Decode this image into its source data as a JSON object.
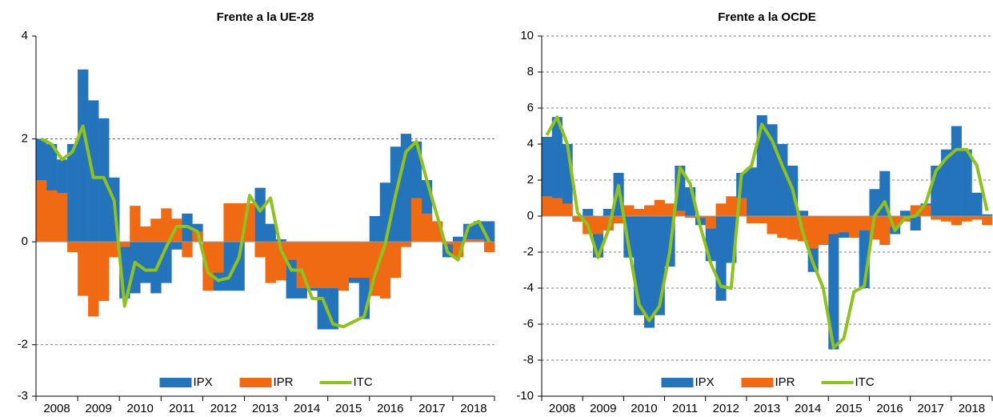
{
  "chart_data": [
    {
      "type": "bar",
      "title": "Frente a la UE-28",
      "categories": [
        "2008",
        null,
        null,
        null,
        "2009",
        null,
        null,
        null,
        "2010",
        null,
        null,
        null,
        "2011",
        null,
        null,
        null,
        "2012",
        null,
        null,
        null,
        "2013",
        null,
        null,
        null,
        "2014",
        null,
        null,
        null,
        "2015",
        null,
        null,
        null,
        "2016",
        null,
        null,
        null,
        "2017",
        null,
        null,
        null,
        "2018",
        null,
        null,
        null
      ],
      "ylim": [
        -3,
        4
      ],
      "yticks": [
        -3,
        -2,
        0,
        2,
        4
      ],
      "grid": true,
      "legend": "bottom",
      "series": [
        {
          "name": "IPX",
          "type": "bar",
          "color": "#2474bb",
          "values": [
            2.0,
            1.9,
            1.6,
            1.9,
            3.35,
            2.75,
            2.4,
            1.25,
            -1.1,
            -1.0,
            -0.8,
            -1.0,
            -0.8,
            -0.15,
            0.55,
            0.35,
            -0.6,
            -0.95,
            -0.95,
            -0.95,
            0.6,
            1.05,
            0.35,
            0.05,
            -1.1,
            -1.1,
            -0.95,
            -1.7,
            -1.7,
            -0.6,
            -0.8,
            -1.5,
            0.5,
            1.15,
            1.85,
            2.1,
            1.95,
            1.2,
            0.15,
            -0.3,
            0.1,
            0.35,
            0.4,
            0.4
          ]
        },
        {
          "name": "IPR",
          "type": "bar",
          "color": "#f06a14",
          "values": [
            1.2,
            1.0,
            0.95,
            -0.2,
            -1.05,
            -1.45,
            -1.15,
            -0.3,
            -0.1,
            0.7,
            0.3,
            0.45,
            0.65,
            0.45,
            -0.3,
            0.2,
            -0.95,
            -0.6,
            0.75,
            0.75,
            0.75,
            -0.3,
            -0.8,
            -0.75,
            -0.35,
            -0.9,
            -0.9,
            -0.9,
            -0.9,
            -0.95,
            -0.7,
            -0.7,
            -1.05,
            -1.1,
            -0.7,
            -0.1,
            0.85,
            0.55,
            0.4,
            -0.05,
            -0.3,
            0.05,
            0.05,
            -0.2
          ]
        },
        {
          "name": "ITC",
          "type": "line",
          "color": "#8dc21f",
          "values": [
            2.0,
            1.9,
            1.6,
            1.75,
            2.25,
            1.25,
            1.25,
            0.8,
            -1.25,
            -0.4,
            -0.55,
            -0.55,
            -0.1,
            0.3,
            0.3,
            0.2,
            -0.6,
            -0.75,
            -0.7,
            -0.3,
            0.9,
            0.6,
            0.85,
            -0.15,
            -0.55,
            -0.55,
            -1.1,
            -1.1,
            -1.6,
            -1.65,
            -1.55,
            -1.45,
            -0.65,
            -0.05,
            0.9,
            1.75,
            1.95,
            1.2,
            0.5,
            -0.2,
            -0.35,
            0.3,
            0.4,
            0.0
          ]
        }
      ]
    },
    {
      "type": "bar",
      "title": "Frente a la OCDE",
      "categories": [
        "2008",
        null,
        null,
        null,
        "2009",
        null,
        null,
        null,
        "2010",
        null,
        null,
        null,
        "2011",
        null,
        null,
        null,
        "2012",
        null,
        null,
        null,
        "2013",
        null,
        null,
        null,
        "2014",
        null,
        null,
        null,
        "2015",
        null,
        null,
        null,
        "2016",
        null,
        null,
        null,
        "2017",
        null,
        null,
        null,
        "2018",
        null,
        null,
        null
      ],
      "ylim": [
        -10,
        10
      ],
      "yticks": [
        -10,
        -8,
        -6,
        -4,
        -2,
        0,
        2,
        4,
        6,
        8,
        10
      ],
      "grid": true,
      "legend": "bottom",
      "series": [
        {
          "name": "IPX",
          "type": "bar",
          "color": "#2474bb",
          "values": [
            4.4,
            5.5,
            4.0,
            -0.3,
            0.4,
            -2.3,
            0.4,
            2.4,
            -2.3,
            -5.5,
            -6.2,
            -5.5,
            -2.8,
            2.8,
            1.6,
            -0.5,
            -2.5,
            -4.7,
            -2.6,
            2.4,
            2.7,
            5.6,
            5.1,
            4.0,
            2.8,
            0.3,
            -3.1,
            -1.6,
            -7.4,
            -1.2,
            -1.0,
            -4.0,
            1.5,
            2.5,
            -1.0,
            0.3,
            -0.8,
            0.7,
            2.8,
            3.7,
            5.0,
            3.7,
            1.3,
            0.1
          ]
        },
        {
          "name": "IPR",
          "type": "bar",
          "color": "#f06a14",
          "values": [
            1.1,
            1.0,
            0.7,
            -0.3,
            -1.0,
            -1.0,
            -0.8,
            -0.4,
            0.6,
            0.4,
            0.6,
            0.9,
            0.7,
            0.3,
            -0.1,
            -0.1,
            -0.7,
            0.7,
            1.1,
            1.0,
            -0.4,
            -0.4,
            -1.0,
            -1.2,
            -1.3,
            -1.4,
            -1.8,
            -1.6,
            -1.0,
            -0.9,
            -1.2,
            -0.8,
            -1.3,
            -1.6,
            -0.6,
            -0.3,
            0.6,
            0.6,
            -0.2,
            -0.3,
            -0.5,
            -0.3,
            -0.2,
            -0.5
          ]
        },
        {
          "name": "ITC",
          "type": "line",
          "color": "#8dc21f",
          "values": [
            4.5,
            5.5,
            4.0,
            0.2,
            -0.5,
            -2.3,
            -0.8,
            1.7,
            -1.7,
            -4.9,
            -5.8,
            -5.0,
            -2.0,
            2.7,
            1.8,
            -0.6,
            -2.6,
            -3.9,
            -4.0,
            2.3,
            2.8,
            5.1,
            4.2,
            2.8,
            1.5,
            -0.9,
            -2.6,
            -4.0,
            -7.3,
            -6.8,
            -4.2,
            -3.9,
            0.0,
            0.8,
            -0.8,
            -0.1,
            0.0,
            0.7,
            2.5,
            3.2,
            3.7,
            3.7,
            2.8,
            0.3
          ]
        }
      ]
    }
  ]
}
